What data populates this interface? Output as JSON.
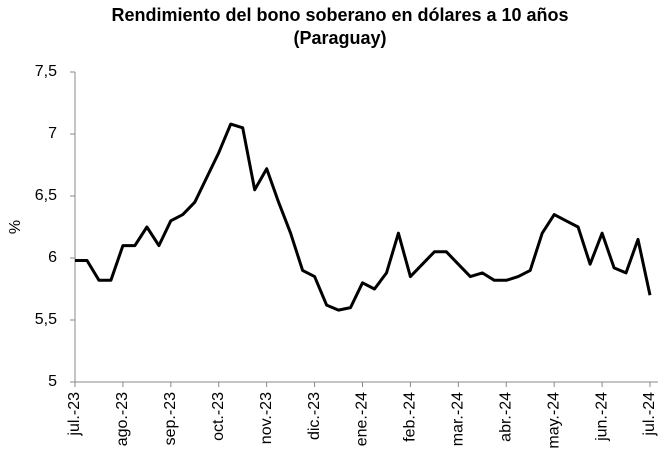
{
  "chart_data": {
    "type": "line",
    "title": "Rendimiento del bono soberano en dólares a 10 años",
    "subtitle": "(Paraguay)",
    "y_label": "%",
    "categories": [
      "jul.-23",
      null,
      null,
      null,
      "ago.-23",
      null,
      null,
      null,
      "sep.-23",
      null,
      null,
      null,
      "oct.-23",
      null,
      null,
      null,
      "nov.-23",
      null,
      null,
      null,
      "dic.-23",
      null,
      null,
      null,
      "ene.-24",
      null,
      null,
      null,
      "feb.-24",
      null,
      null,
      null,
      "mar.-24",
      null,
      null,
      null,
      "abr.-24",
      null,
      null,
      null,
      "may.-24",
      null,
      null,
      null,
      "jun.-24",
      null,
      null,
      null,
      "jul.-24"
    ],
    "series": [
      {
        "name": "Rendimiento",
        "color": "#000000",
        "values": [
          5.98,
          5.98,
          5.82,
          5.82,
          6.1,
          6.1,
          6.25,
          6.1,
          6.3,
          6.35,
          6.45,
          6.65,
          6.85,
          7.08,
          7.05,
          6.55,
          6.72,
          6.45,
          6.2,
          5.9,
          5.85,
          5.62,
          5.58,
          5.6,
          5.8,
          5.75,
          5.88,
          6.2,
          5.85,
          5.95,
          6.05,
          6.05,
          5.95,
          5.85,
          5.88,
          5.82,
          5.82,
          5.85,
          5.9,
          6.2,
          6.35,
          6.3,
          6.25,
          5.95,
          6.2,
          5.92,
          5.88,
          6.15,
          5.7
        ]
      }
    ],
    "ylim": [
      5,
      7.5
    ],
    "yticks": [
      5,
      {
        "value": 5.5,
        "label": "5,5"
      },
      6,
      {
        "value": 6.5,
        "label": "6,5"
      },
      7,
      {
        "value": 7.5,
        "label": "7,5"
      }
    ],
    "grid": false
  }
}
